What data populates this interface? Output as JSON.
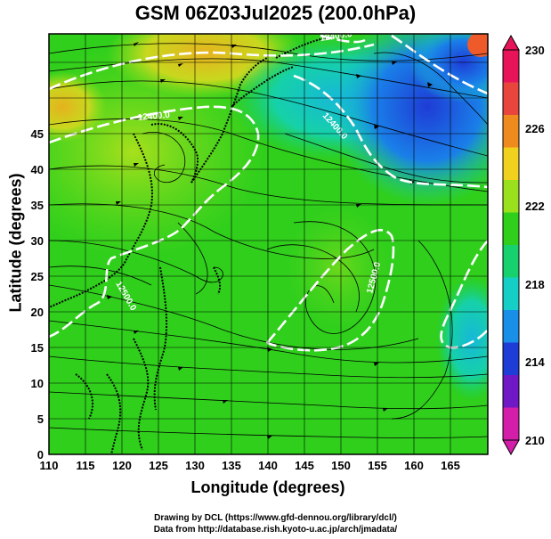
{
  "title": "GSM 06Z03Jul2025 (200.0hPa)",
  "axes": {
    "xlabel": "Longitude (degrees)",
    "ylabel": "Latitude  (degrees)",
    "x_ticks": [
      "110",
      "115",
      "120",
      "125",
      "130",
      "135",
      "140",
      "145",
      "150",
      "155",
      "160",
      "165"
    ],
    "y_ticks": [
      "0",
      "5",
      "10",
      "15",
      "20",
      "25",
      "30",
      "35",
      "40",
      "45"
    ]
  },
  "colorbar": {
    "ticks": [
      "230",
      "226",
      "222",
      "218",
      "214",
      "210"
    ],
    "colors": [
      "#e8145a",
      "#e8463c",
      "#ee8a1e",
      "#f0d21e",
      "#9be01c",
      "#2fcf1c",
      "#16d16e",
      "#15cfc7",
      "#1a8fe8",
      "#1e3cd6",
      "#6e18c6",
      "#d21ea8"
    ]
  },
  "contours": {
    "labels": [
      "12400.0",
      "12400.0",
      "12400.0",
      "12500.0",
      "12500.0"
    ]
  },
  "credits": [
    "Drawing by DCL (https://www.gfd-dennou.org/library/dcl/)",
    "Data from http://database.rish.kyoto-u.ac.jp/arch/jmadata/"
  ],
  "chart_data": {
    "type": "heatmap",
    "title": "GSM 06Z03Jul2025 (200.0hPa)",
    "xlabel": "Longitude (degrees)",
    "ylabel": "Latitude  (degrees)",
    "xlim": [
      110,
      170
    ],
    "ylim": [
      0,
      50
    ],
    "colorbar_range": [
      210,
      230
    ],
    "colorbar_ticks": [
      210,
      214,
      218,
      222,
      226,
      230
    ],
    "contour_labels": [
      "12400.0",
      "12500.0"
    ]
  }
}
